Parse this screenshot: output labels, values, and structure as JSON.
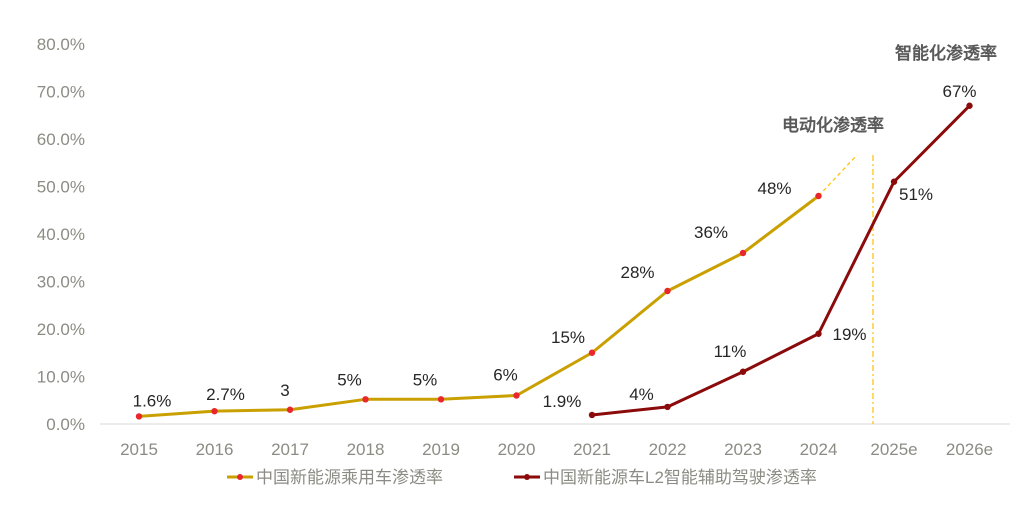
{
  "chart_data": {
    "type": "line",
    "categories": [
      "2015",
      "2016",
      "2017",
      "2018",
      "2019",
      "2020",
      "2021",
      "2022",
      "2023",
      "2024",
      "2025e",
      "2026e"
    ],
    "ylim": [
      0,
      80
    ],
    "yticks": [
      "0.0%",
      "10.0%",
      "20.0%",
      "30.0%",
      "40.0%",
      "50.0%",
      "60.0%",
      "70.0%",
      "80.0%"
    ],
    "grid": false,
    "legend_position": "bottom",
    "series": [
      {
        "name": "中国新能源乘用车渗透率",
        "color": "#C9A000",
        "marker_color": "#E8262B",
        "values": [
          1.6,
          2.7,
          3,
          5.2,
          5.2,
          6,
          15,
          28,
          36,
          48,
          null,
          null
        ],
        "labels": [
          "1.6%",
          "2.7%",
          "3",
          "5%",
          "5%",
          "6%",
          "15%",
          "28%",
          "36%",
          "48%",
          "",
          ""
        ]
      },
      {
        "name": "中国新能源车L2智能辅助驾驶渗透率",
        "color": "#8B0A0A",
        "marker_color": "#8B0A0A",
        "values": [
          null,
          null,
          null,
          null,
          null,
          null,
          1.9,
          3.6,
          11,
          19,
          51,
          67
        ],
        "labels": [
          "",
          "",
          "",
          "",
          "",
          "",
          "1.9%",
          "4%",
          "11%",
          "19%",
          "51%",
          "67%"
        ]
      }
    ],
    "annotations": {
      "electrification": "电动化渗透率",
      "intelligence": "智能化渗透率"
    },
    "projection_color": "#FFC000"
  }
}
